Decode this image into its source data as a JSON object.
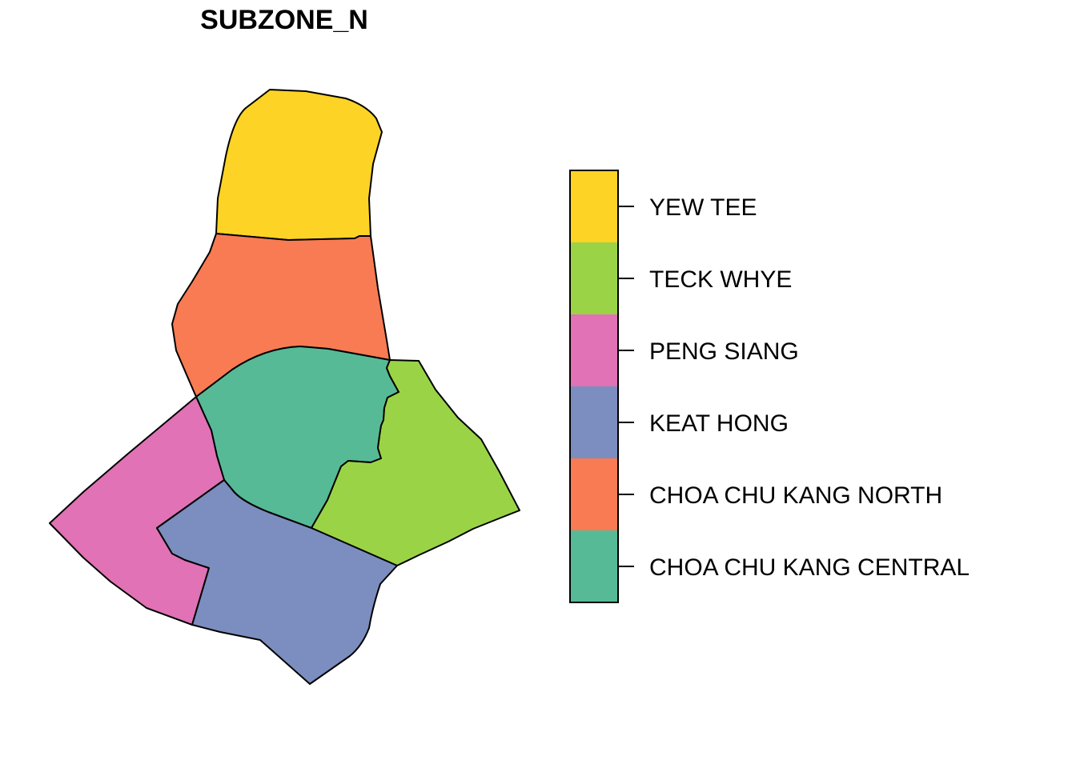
{
  "title": "SUBZONE_N",
  "zones": [
    {
      "id": "yew-tee",
      "name": "YEW TEE",
      "color": "#FDD326"
    },
    {
      "id": "teck-whye",
      "name": "TECK WHYE",
      "color": "#9AD446"
    },
    {
      "id": "peng-siang",
      "name": "PENG SIANG",
      "color": "#E072B5"
    },
    {
      "id": "keat-hong",
      "name": "KEAT HONG",
      "color": "#7C8DBF"
    },
    {
      "id": "choa-chu-kang-north",
      "name": "CHOA CHU KANG NORTH",
      "color": "#F97B53"
    },
    {
      "id": "choa-chu-kang-central",
      "name": "CHOA CHU KANG CENTRAL",
      "color": "#57BA96"
    }
  ]
}
